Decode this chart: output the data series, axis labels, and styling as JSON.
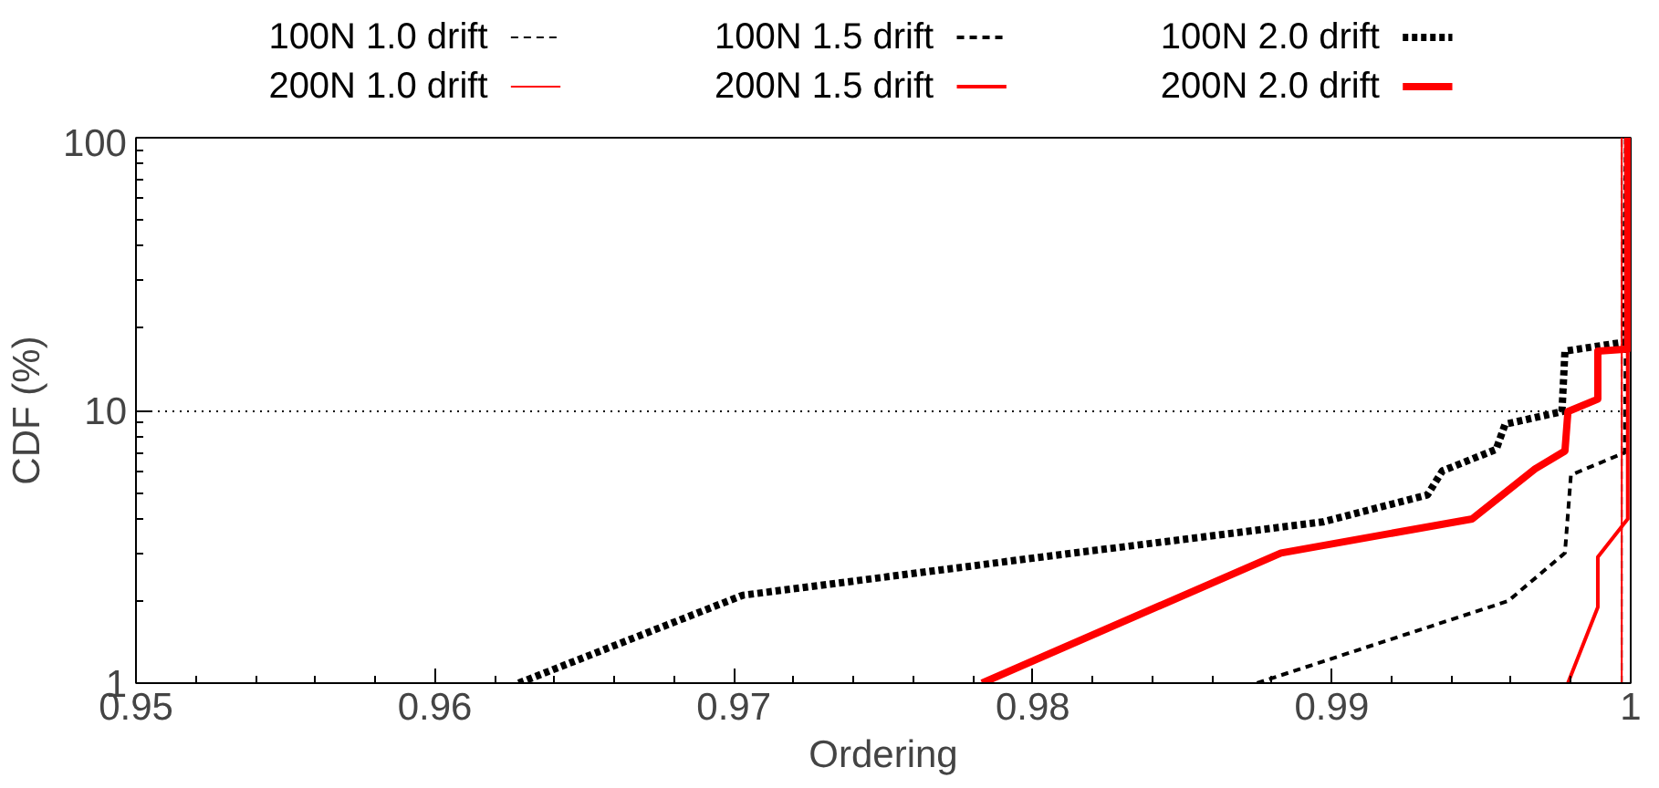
{
  "chart_data": {
    "type": "line",
    "xlabel": "Ordering",
    "ylabel": "CDF (%)",
    "xlim": [
      0.95,
      1
    ],
    "xticks": [
      0.95,
      0.96,
      0.97,
      0.98,
      0.99,
      1
    ],
    "ylim": [
      1,
      100
    ],
    "yticks": [
      1,
      10,
      100
    ],
    "log": "y",
    "grid": "y",
    "legend": "top",
    "series": [
      {
        "name": "100N 1.0 drift",
        "color": "#000000",
        "line_style": "dashed",
        "x": [
          0.9997,
          0.9997
        ],
        "values": [
          1,
          100
        ]
      },
      {
        "name": "100N 1.5 drift",
        "color": "#000000",
        "line_style": "dashed",
        "x": [
          0.9875,
          0.9897,
          0.9959,
          0.9978,
          0.998,
          0.9998,
          0.9999
        ],
        "values": [
          1,
          1.2,
          2.0,
          3.0,
          5.8,
          7.0,
          100
        ]
      },
      {
        "name": "100N 2.0 drift",
        "color": "#000000",
        "line_style": "dotted",
        "x": [
          0.9628,
          0.9703,
          0.9803,
          0.9897,
          0.9932,
          0.9937,
          0.9955,
          0.9958,
          0.9977,
          0.9978,
          0.9998,
          0.9999
        ],
        "values": [
          1,
          2.1,
          2.9,
          3.9,
          4.9,
          6.0,
          7.2,
          8.9,
          9.9,
          16.5,
          17.8,
          100
        ]
      },
      {
        "name": "200N 1.0 drift",
        "color": "#ff0000",
        "line_style": "solid",
        "x": [
          0.9997,
          0.9997
        ],
        "values": [
          1,
          100
        ]
      },
      {
        "name": "200N 1.5 drift",
        "color": "#ff0000",
        "line_style": "solid",
        "x": [
          0.9979,
          0.9989,
          0.9989,
          0.9999,
          0.9999
        ],
        "values": [
          1,
          1.9,
          2.9,
          4.0,
          100
        ]
      },
      {
        "name": "200N 2.0 drift",
        "color": "#ff0000",
        "line_style": "solid",
        "x": [
          0.9783,
          0.9883,
          0.9947,
          0.9968,
          0.9978,
          0.9979,
          0.9989,
          0.9989,
          0.9999,
          0.9999
        ],
        "values": [
          1,
          3.0,
          4.0,
          6.1,
          7.1,
          9.9,
          11.0,
          16.5,
          16.8,
          100
        ]
      }
    ]
  }
}
